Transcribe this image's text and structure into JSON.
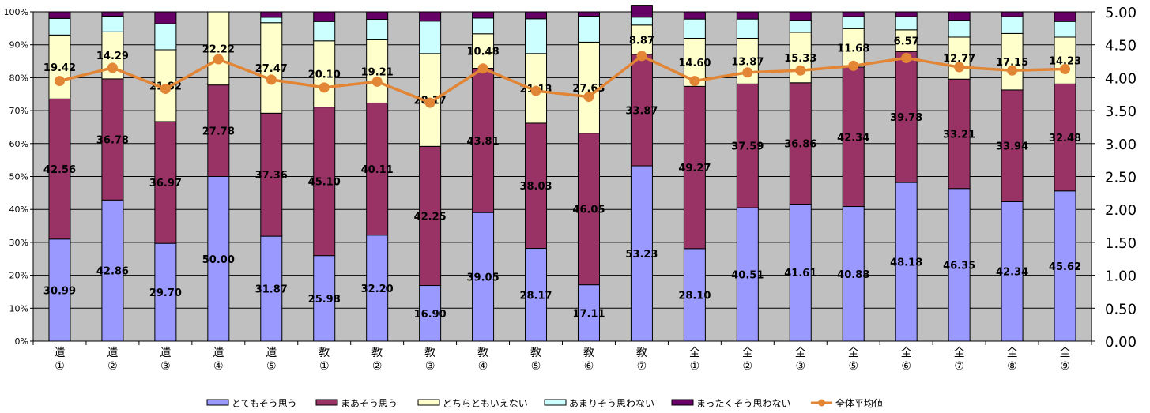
{
  "chart_data": {
    "type": "bar",
    "stacked": true,
    "percent_stacked": true,
    "categories": [
      [
        "遺",
        "①"
      ],
      [
        "遺",
        "②"
      ],
      [
        "遺",
        "③"
      ],
      [
        "遺",
        "④"
      ],
      [
        "遺",
        "⑤"
      ],
      [
        "教",
        "①"
      ],
      [
        "教",
        "②"
      ],
      [
        "教",
        "③"
      ],
      [
        "教",
        "④"
      ],
      [
        "教",
        "⑤"
      ],
      [
        "教",
        "⑥"
      ],
      [
        "教",
        "⑦"
      ],
      [
        "全",
        "①"
      ],
      [
        "全",
        "②"
      ],
      [
        "全",
        "③"
      ],
      [
        "全",
        "⑤"
      ],
      [
        "全",
        "⑥"
      ],
      [
        "全",
        "⑦"
      ],
      [
        "全",
        "⑧"
      ],
      [
        "全",
        "⑨"
      ]
    ],
    "series": [
      {
        "name": "とてもそう思う",
        "color": "#9999ff",
        "labeled": true,
        "values": [
          30.99,
          42.86,
          29.7,
          50.0,
          31.87,
          25.98,
          32.2,
          16.9,
          39.05,
          28.17,
          17.11,
          53.23,
          28.1,
          40.51,
          41.61,
          40.88,
          48.18,
          46.35,
          42.34,
          45.62
        ]
      },
      {
        "name": "まあそう思う",
        "color": "#993366",
        "labeled": true,
        "values": [
          42.56,
          36.78,
          36.97,
          27.78,
          37.36,
          45.1,
          40.11,
          42.25,
          43.81,
          38.03,
          46.05,
          33.87,
          49.27,
          37.59,
          36.86,
          42.34,
          39.78,
          33.21,
          33.94,
          32.48
        ]
      },
      {
        "name": "どちらともいえない",
        "color": "#ffffcc",
        "labeled": true,
        "values": [
          19.42,
          14.29,
          21.82,
          22.22,
          27.47,
          20.1,
          19.21,
          28.17,
          10.48,
          21.13,
          27.63,
          8.87,
          14.6,
          13.87,
          15.33,
          11.68,
          6.57,
          12.77,
          17.15,
          14.23
        ]
      },
      {
        "name": "あまりそう思わない",
        "color": "#ccffff",
        "labeled": false,
        "values": [
          5.03,
          4.76,
          7.88,
          0,
          1.65,
          5.88,
          6.21,
          9.86,
          4.76,
          10.56,
          7.89,
          2.42,
          5.84,
          5.84,
          3.65,
          3.65,
          4.01,
          5.11,
          5.11,
          4.74
        ]
      },
      {
        "name": "まったくそう思わない",
        "color": "#660066",
        "labeled": false,
        "values": [
          2.0,
          1.31,
          3.63,
          0,
          1.65,
          2.94,
          2.27,
          2.82,
          1.9,
          2.11,
          1.32,
          3.63,
          2.19,
          2.19,
          2.55,
          1.45,
          1.46,
          2.56,
          1.46,
          2.93
        ]
      }
    ],
    "line": {
      "name": "全体平均値",
      "color": "#e28534",
      "axis": "right",
      "values": [
        3.95,
        4.15,
        3.83,
        4.28,
        3.97,
        3.85,
        3.94,
        3.62,
        4.14,
        3.8,
        3.71,
        4.33,
        3.95,
        4.08,
        4.11,
        4.18,
        4.3,
        4.16,
        4.11,
        4.13
      ]
    },
    "y_left": {
      "ylim": [
        0,
        100
      ],
      "ticks": [
        "0%",
        "10%",
        "20%",
        "30%",
        "40%",
        "50%",
        "60%",
        "70%",
        "80%",
        "90%",
        "100%"
      ]
    },
    "y_right": {
      "ylim": [
        0,
        5
      ],
      "ticks": [
        "0.00",
        "0.50",
        "1.00",
        "1.50",
        "2.00",
        "2.50",
        "3.00",
        "3.50",
        "4.00",
        "4.50",
        "5.00"
      ]
    },
    "plot_background": "#c0c0c0",
    "grid": true,
    "legend_position": "bottom"
  }
}
